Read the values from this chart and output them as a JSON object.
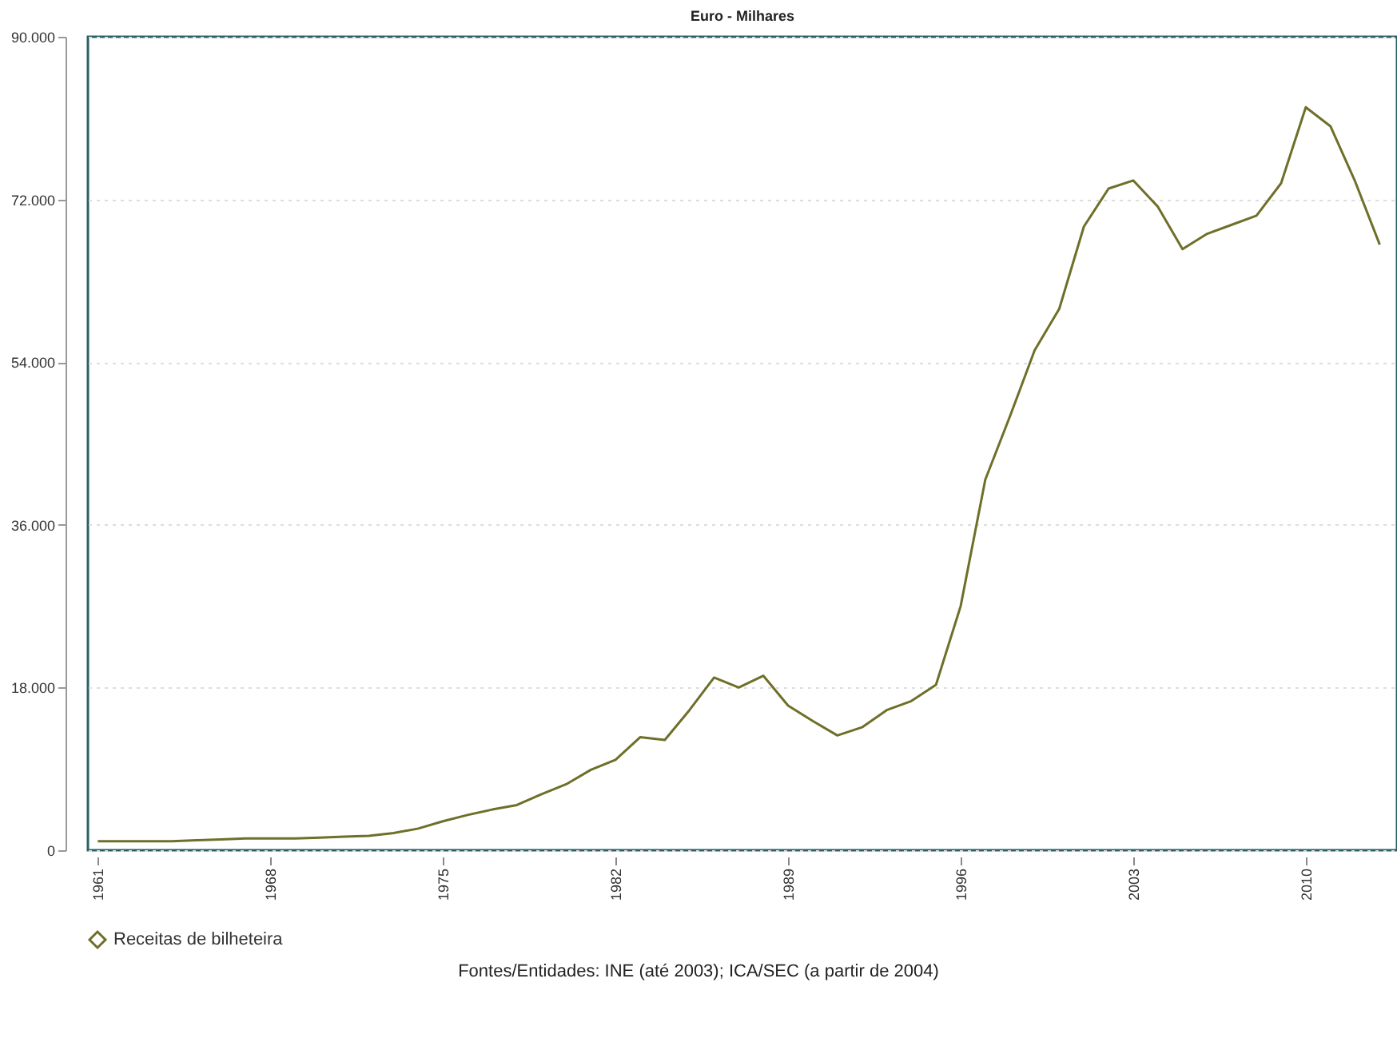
{
  "chart_data": {
    "type": "line",
    "title": "Euro - Milhares",
    "x": [
      1961,
      1962,
      1963,
      1964,
      1965,
      1966,
      1967,
      1968,
      1969,
      1970,
      1971,
      1972,
      1973,
      1974,
      1975,
      1976,
      1977,
      1978,
      1979,
      1980,
      1981,
      1982,
      1983,
      1984,
      1985,
      1986,
      1987,
      1988,
      1989,
      1990,
      1991,
      1992,
      1993,
      1994,
      1995,
      1996,
      1997,
      1998,
      1999,
      2000,
      2001,
      2002,
      2003,
      2004,
      2005,
      2006,
      2007,
      2008,
      2009,
      2010,
      2011,
      2012,
      2013
    ],
    "series": [
      {
        "name": "Receitas de bilheteira",
        "color": "#6f6f2a",
        "values": [
          1000,
          1000,
          1000,
          1000,
          1100,
          1200,
          1300,
          1300,
          1300,
          1400,
          1500,
          1600,
          1900,
          2400,
          3200,
          3900,
          4500,
          5000,
          6200,
          7300,
          8900,
          10000,
          12500,
          12200,
          15500,
          19100,
          18000,
          19300,
          16000,
          14300,
          12700,
          13600,
          15500,
          16500,
          18300,
          27000,
          41000,
          48000,
          55300,
          59900,
          69000,
          73200,
          74100,
          71200,
          66500,
          68200,
          69200,
          70200,
          73800,
          82200,
          80100,
          74000,
          67000
        ]
      }
    ],
    "xlim": [
      1960.6,
      2013.7
    ],
    "xticks": [
      1961,
      1968,
      1975,
      1982,
      1989,
      1996,
      2003,
      2010
    ],
    "ylim": [
      0,
      90000
    ],
    "yticks": [
      {
        "value": 0,
        "label": "0"
      },
      {
        "value": 18000,
        "label": "18.000"
      },
      {
        "value": 36000,
        "label": "36.000"
      },
      {
        "value": 54000,
        "label": "54.000"
      },
      {
        "value": 72000,
        "label": "72.000"
      },
      {
        "value": 90000,
        "label": "90.000"
      }
    ],
    "grid": "y",
    "legend": "bottom",
    "annotations": [
      "Fontes/Entidades: INE (até 2003); ICA/SEC (a partir de 2004)"
    ]
  }
}
